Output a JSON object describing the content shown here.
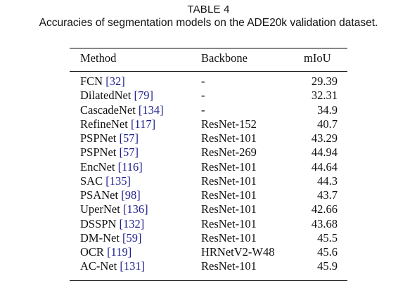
{
  "caption": {
    "label": "TABLE 4",
    "text": "Accuracies of segmentation models on the ADE20k validation dataset."
  },
  "table": {
    "headers": {
      "method": "Method",
      "backbone": "Backbone",
      "miou": "mIoU"
    },
    "rows": [
      {
        "method": "FCN",
        "ref": "[32]",
        "backbone": "-",
        "miou": "29.39"
      },
      {
        "method": "DilatedNet",
        "ref": "[79]",
        "backbone": "-",
        "miou": "32.31"
      },
      {
        "method": "CascadeNet",
        "ref": "[134]",
        "backbone": "-",
        "miou": "34.9"
      },
      {
        "method": "RefineNet",
        "ref": "[117]",
        "backbone": "ResNet-152",
        "miou": "40.7"
      },
      {
        "method": "PSPNet",
        "ref": "[57]",
        "backbone": "ResNet-101",
        "miou": "43.29"
      },
      {
        "method": "PSPNet",
        "ref": "[57]",
        "backbone": "ResNet-269",
        "miou": "44.94"
      },
      {
        "method": "EncNet",
        "ref": "[116]",
        "backbone": "ResNet-101",
        "miou": "44.64"
      },
      {
        "method": "SAC",
        "ref": "[135]",
        "backbone": "ResNet-101",
        "miou": "44.3"
      },
      {
        "method": "PSANet",
        "ref": "[98]",
        "backbone": "ResNet-101",
        "miou": "43.7"
      },
      {
        "method": "UperNet",
        "ref": "[136]",
        "backbone": "ResNet-101",
        "miou": "42.66"
      },
      {
        "method": "DSSPN",
        "ref": "[132]",
        "backbone": "ResNet-101",
        "miou": "43.68"
      },
      {
        "method": "DM-Net",
        "ref": "[59]",
        "backbone": "ResNet-101",
        "miou": "45.5"
      },
      {
        "method": "OCR",
        "ref": "[119]",
        "backbone": "HRNetV2-W48",
        "miou": "45.6"
      },
      {
        "method": "AC-Net",
        "ref": "[131]",
        "backbone": "ResNet-101",
        "miou": "45.9"
      }
    ]
  },
  "colors": {
    "text": "#111111",
    "citation": "#1f1f8f",
    "rule": "#000000"
  }
}
